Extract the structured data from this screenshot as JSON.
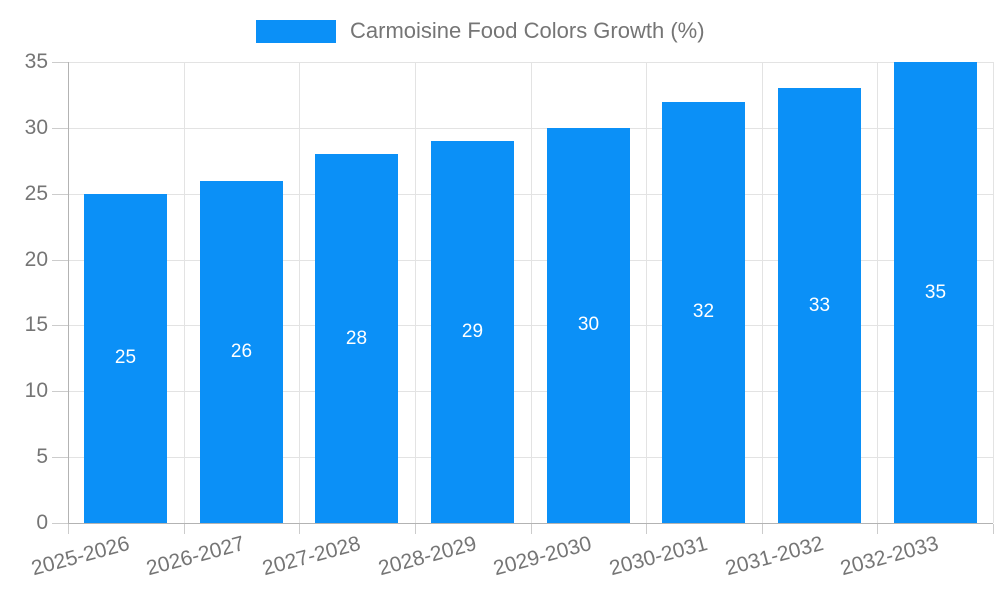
{
  "legend": {
    "title": "Carmoisine Food Colors Growth (%)"
  },
  "chart_data": {
    "type": "bar",
    "title": "Carmoisine Food Colors Growth (%)",
    "categories": [
      "2025-2026",
      "2026-2027",
      "2027-2028",
      "2028-2029",
      "2029-2030",
      "2030-2031",
      "2031-2032",
      "2032-2033"
    ],
    "values": [
      25,
      26,
      28,
      29,
      30,
      32,
      33,
      35
    ],
    "xlabel": "",
    "ylabel": "",
    "ylim": [
      0,
      35
    ],
    "yticks": [
      0,
      5,
      10,
      15,
      20,
      25,
      30,
      35
    ],
    "grid": true,
    "legend_position": "top",
    "bar_labels_inside": true,
    "x_label_rotation_deg": -15,
    "colors": {
      "bar": "#0b90f7",
      "bar_label": "#ffffff",
      "axis_text": "#757575",
      "grid_line": "#e3e3e3",
      "axis_line": "#b3b3b3",
      "tick": "#cccccc",
      "background": "#ffffff"
    }
  }
}
